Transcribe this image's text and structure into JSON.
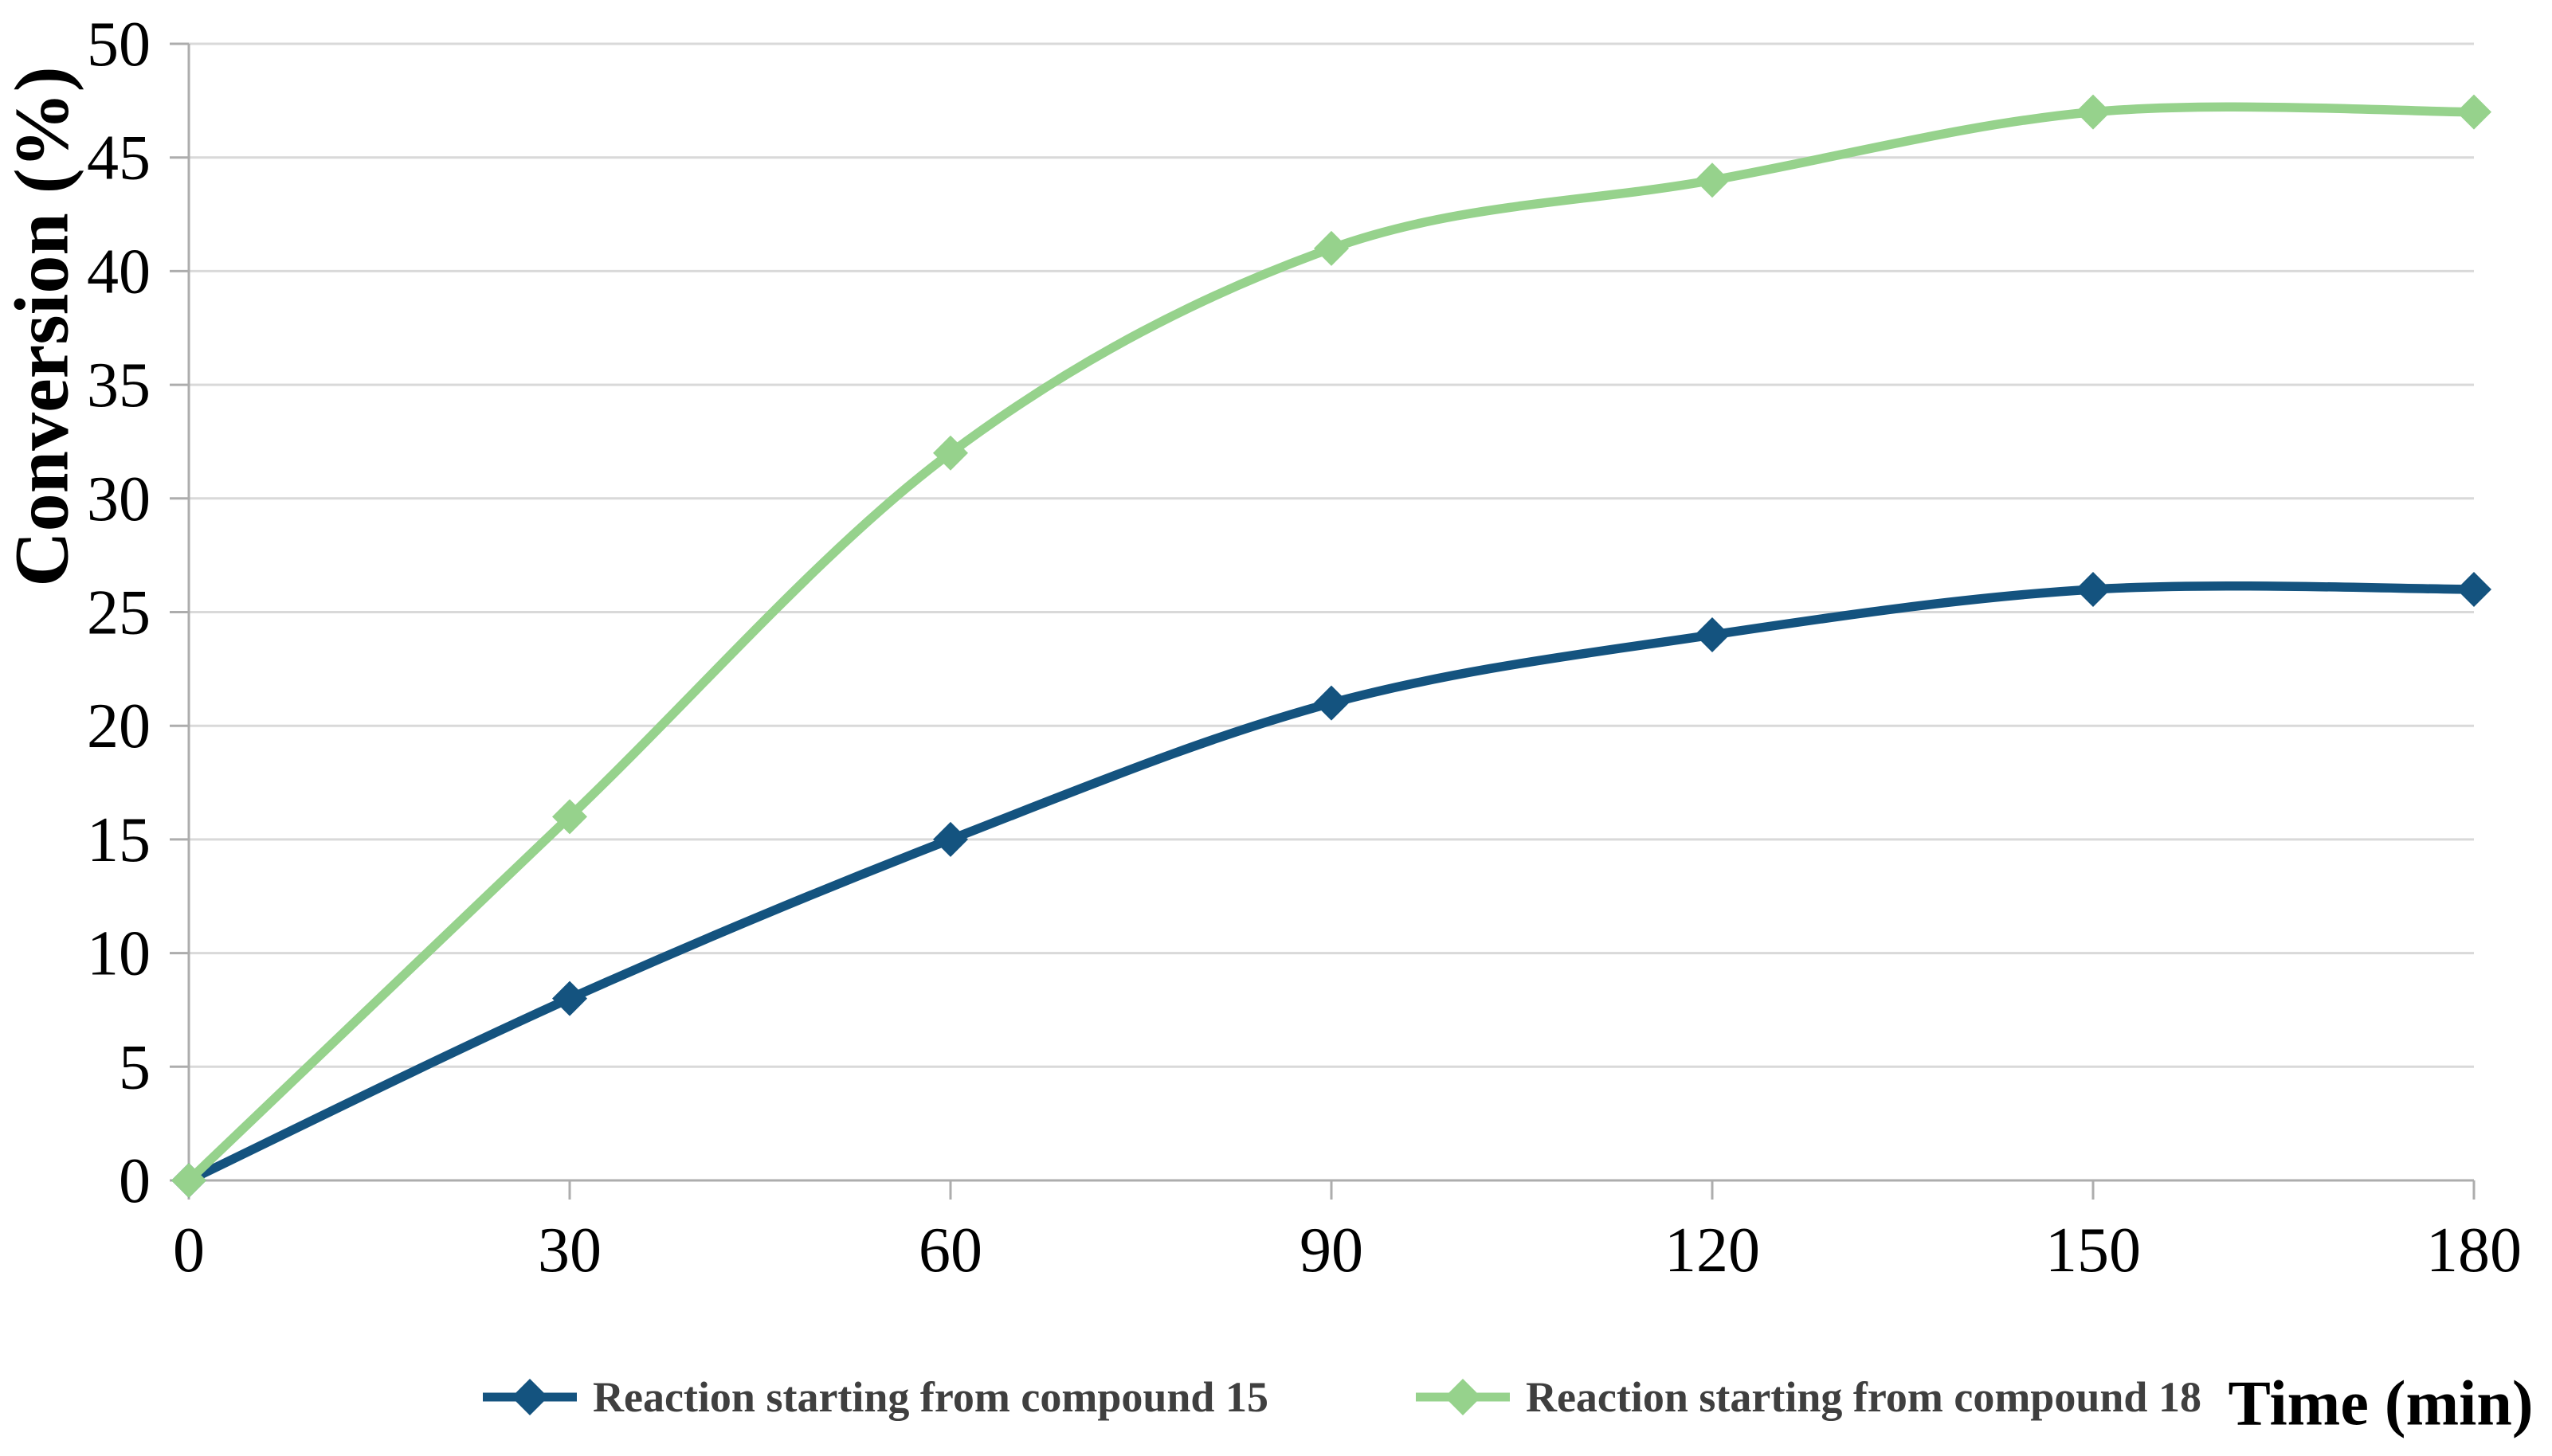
{
  "chart_data": {
    "type": "line",
    "title": "",
    "xlabel": "Time (min)",
    "ylabel": "Conversion (%)",
    "x": [
      0,
      30,
      60,
      90,
      120,
      150,
      180
    ],
    "series": [
      {
        "name": "Reaction starting from compound 15",
        "values": [
          0,
          8,
          15,
          21,
          24,
          26,
          26
        ],
        "color": "#14537F",
        "marker": "diamond"
      },
      {
        "name": "Reaction starting from compound 18",
        "values": [
          0,
          16,
          32,
          41,
          44,
          47,
          47
        ],
        "color": "#96D28C",
        "marker": "diamond"
      }
    ],
    "xticks": [
      0,
      30,
      60,
      90,
      120,
      150,
      180
    ],
    "yticks": [
      0,
      5,
      10,
      15,
      20,
      25,
      30,
      35,
      40,
      45,
      50
    ],
    "xlim": [
      0,
      180
    ],
    "ylim": [
      0,
      50
    ],
    "grid": "horizontal",
    "line_style": "smooth",
    "legend_position": "bottom",
    "colors": {
      "gridline": "#D9D9D9",
      "axis": "#ADADAD",
      "tick_label": "#000000",
      "axis_title": "#000000",
      "legend_text": "#3F3F3F",
      "background": "#FFFFFF"
    }
  }
}
